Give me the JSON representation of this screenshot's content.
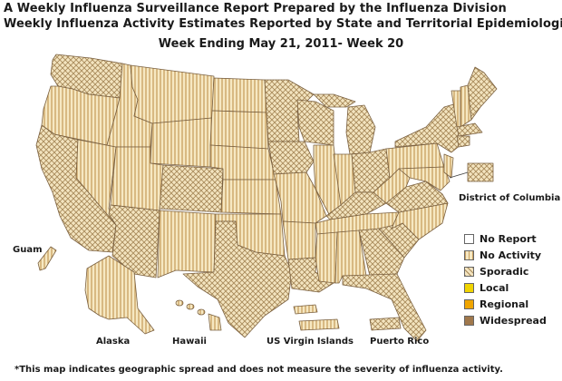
{
  "title_line1": "A Weekly Influenza Surveillance Report Prepared by the Influenza Division",
  "title_line2": "Weekly Influenza Activity Estimates Reported by State and Territorial Epidemiologists*",
  "week": "Week Ending May 21, 2011- Week 20",
  "labels": {
    "dc": "District of Columbia",
    "guam": "Guam",
    "alaska": "Alaska",
    "hawaii": "Hawaii",
    "usvi": "US Virgin Islands",
    "pr": "Puerto Rico"
  },
  "legend": [
    {
      "label": "No Report",
      "color": "#ffffff"
    },
    {
      "label": "No Activity",
      "color": "#f6e8c2"
    },
    {
      "label": "Sporadic",
      "color": "#d7b98a"
    },
    {
      "label": "Local",
      "color": "#f0d400"
    },
    {
      "label": "Regional",
      "color": "#f0a500"
    },
    {
      "label": "Widespread",
      "color": "#a0784c"
    }
  ],
  "footnote": "*This map indicates geographic spread and does not measure the severity of influenza activity.",
  "colors": {
    "no_activity_stripe": "#c9a060",
    "sporadic_hatch": "#a88a5a",
    "border": "#7a6040"
  }
}
